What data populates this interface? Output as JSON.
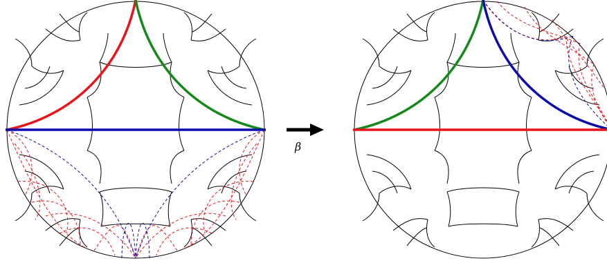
{
  "diagram": {
    "map_label": "β",
    "colors": {
      "red": "#e8141b",
      "green": "#14891a",
      "blue": "#0b0ba8",
      "outline": "#000000"
    }
  }
}
